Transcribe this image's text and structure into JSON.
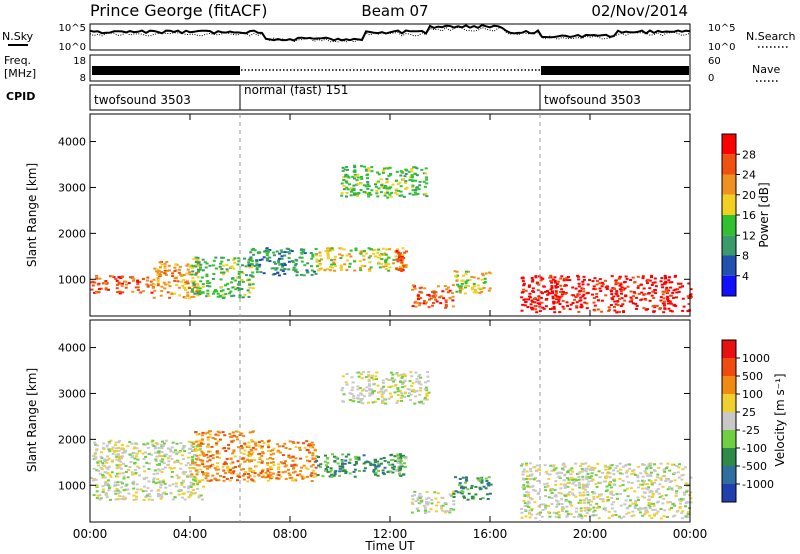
{
  "header": {
    "station": "Prince George (fitACF)",
    "beam": "Beam 07",
    "date": "02/Nov/2014"
  },
  "strips": {
    "nsky_label": "N.Sky",
    "nsky_ticks": [
      "10^5",
      "10^0"
    ],
    "nsearch_label": "N.Search",
    "nsearch_ticks": [
      "10^5",
      "10^0"
    ],
    "freq_label_line1": "Freq.",
    "freq_label_line2": "[MHz]",
    "freq_ticks": [
      "18",
      "8"
    ],
    "nave_label": "Nave",
    "nave_ticks": [
      "60",
      "0"
    ],
    "cpid_label": "CPID",
    "cpid_segments": [
      "twofsound 3503",
      "normal (fast) 151",
      "twofsound 3503"
    ]
  },
  "colors": {
    "power": [
      "#1010ff",
      "#2050b0",
      "#3a9a6a",
      "#30c030",
      "#f0d020",
      "#f09020",
      "#f05010",
      "#ff0000"
    ],
    "velocity": [
      "#2040b0",
      "#2e6fa0",
      "#2e8a4a",
      "#6ecf40",
      "#c8c8c8",
      "#f0d030",
      "#f08a10",
      "#f04a10",
      "#e81010"
    ],
    "ground_scatter": "#c8c8c8"
  },
  "chart_data": [
    {
      "type": "heatmap",
      "name": "Power",
      "ylabel": "Slant Range [km]",
      "colorbar_label": "Power [dB]",
      "colorbar_ticks": [
        "28",
        "24",
        "20",
        "16",
        "12",
        "8",
        "4"
      ],
      "y_ticks": [
        "4000",
        "3000",
        "2000",
        "1000"
      ],
      "ylim": [
        200,
        4600
      ],
      "xlim": [
        0,
        24
      ],
      "cpid_boundaries_hours": [
        6,
        18
      ],
      "regions": [
        {
          "x": [
            0.0,
            2.5
          ],
          "y": [
            700,
            1100
          ],
          "level": 6
        },
        {
          "x": [
            2.5,
            4.3
          ],
          "y": [
            600,
            1400
          ],
          "level": 5
        },
        {
          "x": [
            4.0,
            6.5
          ],
          "y": [
            600,
            1500
          ],
          "level": 3
        },
        {
          "x": [
            6.3,
            9.0
          ],
          "y": [
            1100,
            1700
          ],
          "level": 2
        },
        {
          "x": [
            9.0,
            12.5
          ],
          "y": [
            1200,
            1700
          ],
          "level": 4
        },
        {
          "x": [
            12.2,
            12.6
          ],
          "y": [
            1200,
            1700
          ],
          "level": 6
        },
        {
          "x": [
            10.0,
            13.5
          ],
          "y": [
            2800,
            3500
          ],
          "level": 3
        },
        {
          "x": [
            12.8,
            14.5
          ],
          "y": [
            400,
            900
          ],
          "level": 6
        },
        {
          "x": [
            14.5,
            16.0
          ],
          "y": [
            700,
            1200
          ],
          "level": 4
        },
        {
          "x": [
            17.2,
            24.0
          ],
          "y": [
            300,
            1100
          ],
          "level": 7
        }
      ]
    },
    {
      "type": "heatmap",
      "name": "Velocity",
      "ylabel": "Slant Range [km]",
      "colorbar_label": "Velocity [m s⁻¹]",
      "colorbar_ticks": [
        "1000",
        "500",
        "100",
        "25",
        "-25",
        "-100",
        "-500",
        "-1000"
      ],
      "y_ticks": [
        "4000",
        "3000",
        "2000",
        "1000"
      ],
      "ylim": [
        200,
        4600
      ],
      "xlim": [
        0,
        24
      ],
      "cpid_boundaries_hours": [
        6,
        18
      ],
      "regions": [
        {
          "x": [
            0.0,
            4.5
          ],
          "y": [
            700,
            2000
          ],
          "level": 4
        },
        {
          "x": [
            4.0,
            6.5
          ],
          "y": [
            1100,
            2200
          ],
          "level": 6
        },
        {
          "x": [
            6.3,
            9.0
          ],
          "y": [
            1100,
            2000
          ],
          "level": 6
        },
        {
          "x": [
            9.0,
            12.5
          ],
          "y": [
            1200,
            1700
          ],
          "level": 2
        },
        {
          "x": [
            12.2,
            12.6
          ],
          "y": [
            1200,
            1700
          ],
          "level": 3
        },
        {
          "x": [
            10.0,
            13.5
          ],
          "y": [
            2800,
            3500
          ],
          "level": 4
        },
        {
          "x": [
            12.8,
            14.5
          ],
          "y": [
            400,
            900
          ],
          "level": 4
        },
        {
          "x": [
            14.5,
            16.0
          ],
          "y": [
            700,
            1200
          ],
          "level": 2
        },
        {
          "x": [
            17.2,
            24.0
          ],
          "y": [
            300,
            1500
          ],
          "level": 4
        }
      ]
    }
  ],
  "xaxis": {
    "label": "Time UT",
    "ticks": [
      "00:00",
      "04:00",
      "08:00",
      "12:00",
      "16:00",
      "20:00",
      "00:00"
    ]
  }
}
